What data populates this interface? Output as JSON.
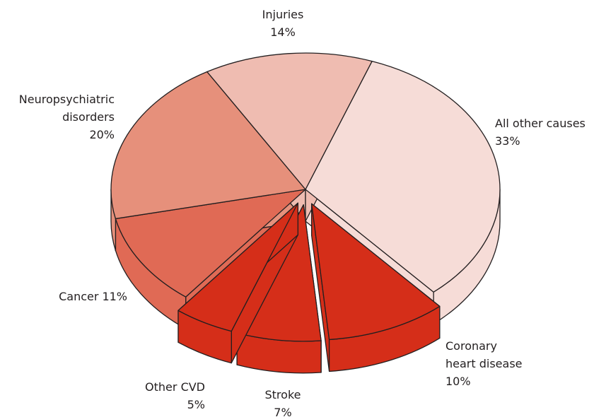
{
  "chart_data": {
    "type": "pie",
    "categories": [
      "All other causes",
      "Coronary\nheart disease",
      "Stroke",
      "Other CVD",
      "Cancer",
      "Neuropsychiatric\ndisorders",
      "Injuries"
    ],
    "values": [
      33,
      10,
      7,
      5,
      11,
      20,
      14
    ],
    "value_labels": [
      "33%",
      "10%",
      "7%",
      "5%",
      "11%",
      "20%",
      "14%"
    ],
    "colors": [
      "#f6dcd7",
      "#d52e19",
      "#d52e19",
      "#d52e19",
      "#e06a55",
      "#e6907b",
      "#efbcb1"
    ],
    "exploded": [
      false,
      true,
      true,
      true,
      false,
      false,
      false
    ]
  }
}
